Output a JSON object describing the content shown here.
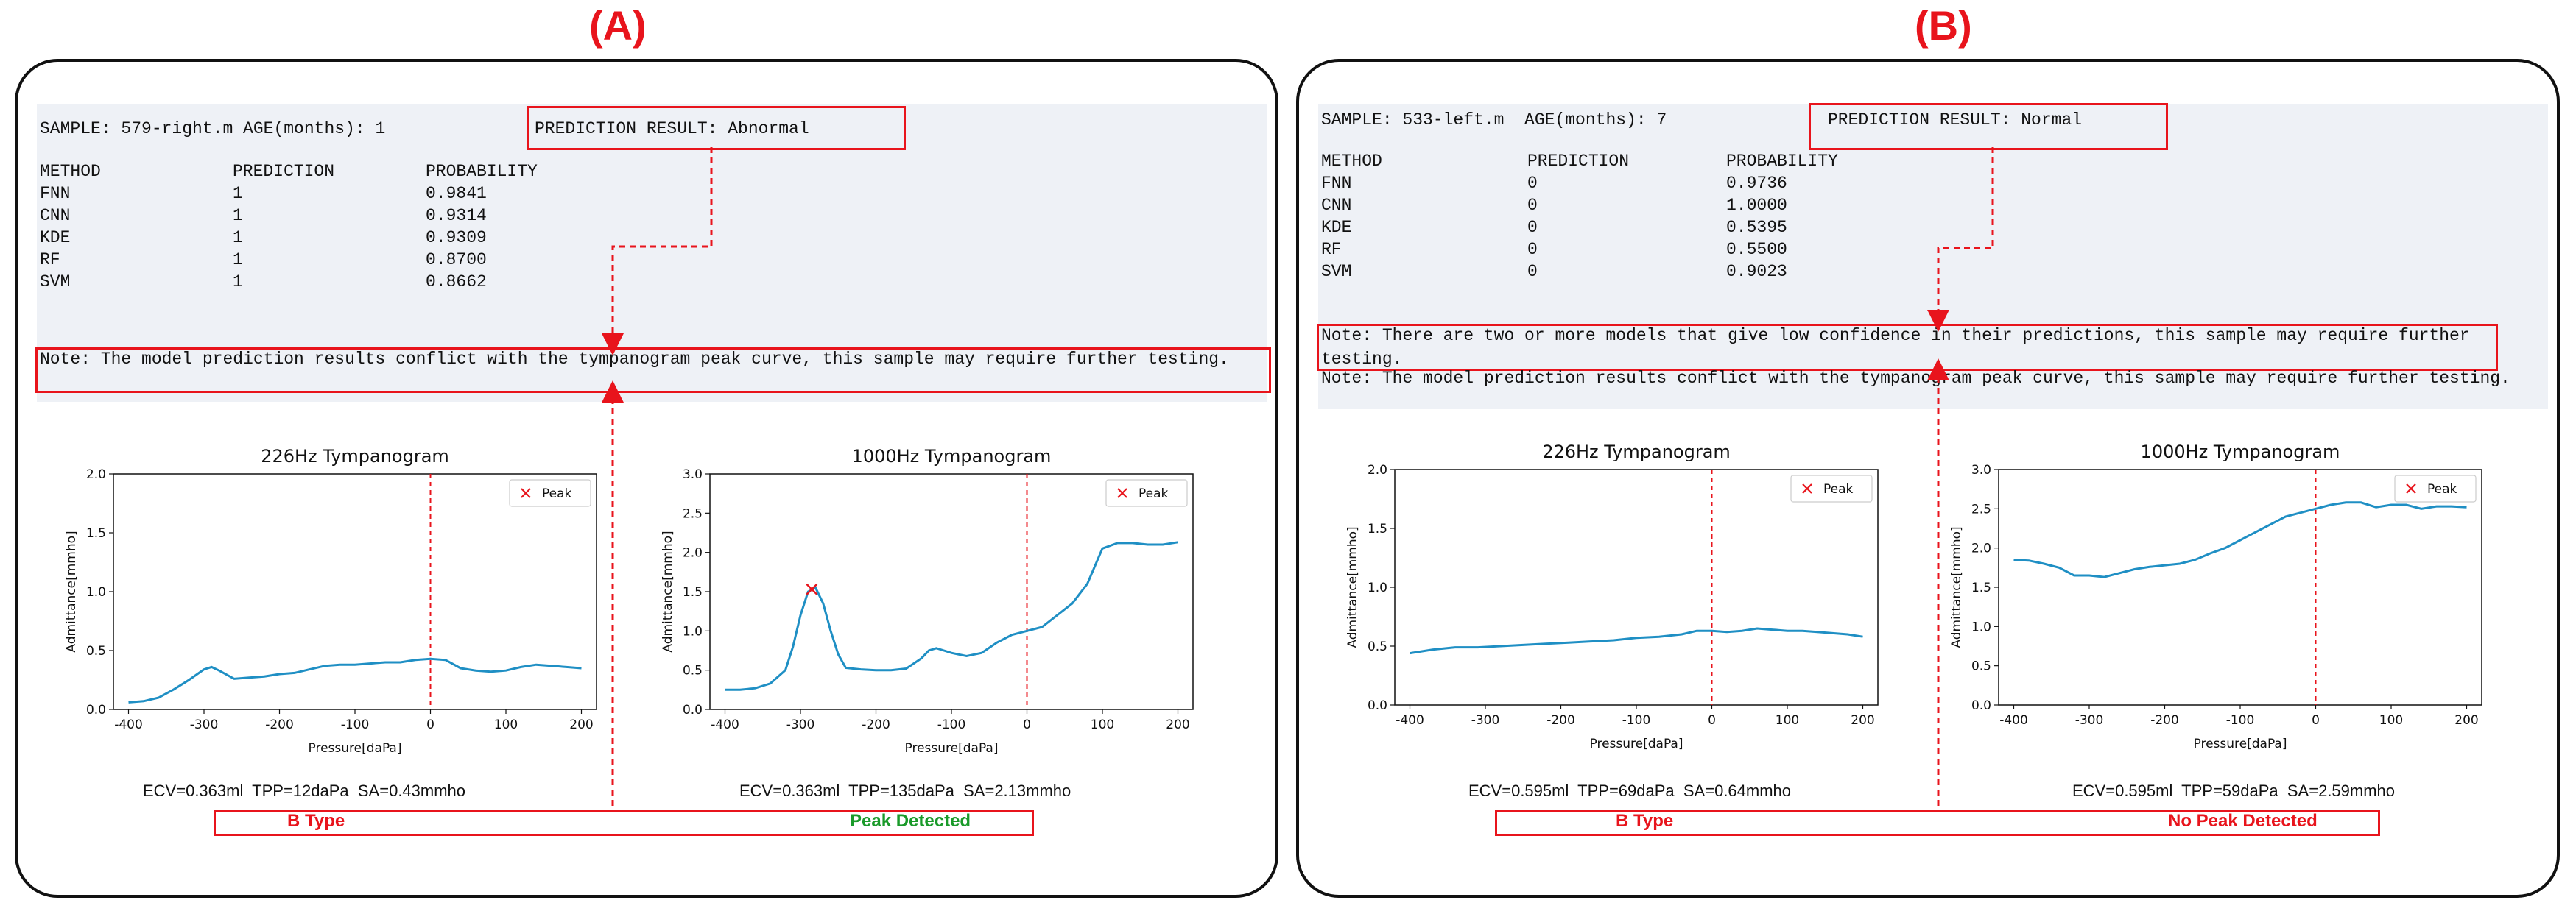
{
  "panels": [
    {
      "label": "(A)",
      "sample_line": "SAMPLE: 579-right.m AGE(months): 1",
      "prediction_result": "PREDICTION RESULT: Abnormal",
      "table_header": {
        "method": "METHOD",
        "prediction": "PREDICTION",
        "probability": "PROBABILITY"
      },
      "rows": [
        {
          "method": "FNN",
          "prediction": "1",
          "probability": "0.9841"
        },
        {
          "method": "CNN",
          "prediction": "1",
          "probability": "0.9314"
        },
        {
          "method": "KDE",
          "prediction": "1",
          "probability": "0.9309"
        },
        {
          "method": "RF",
          "prediction": "1",
          "probability": "0.8700"
        },
        {
          "method": "SVM",
          "prediction": "1",
          "probability": "0.8662"
        }
      ],
      "notes": [
        "Note: The model prediction results conflict with the tympanogram peak curve, this sample may require further testing."
      ],
      "stats_226": "ECV=0.363ml  TPP=12daPa  SA=0.43mmho",
      "stats_1000": "ECV=0.363ml  TPP=135daPa  SA=2.13mmho",
      "footer_left": "B Type",
      "footer_right": "Peak Detected",
      "footer_right_color": "#1a9a2a"
    },
    {
      "label": "(B)",
      "sample_line": "SAMPLE: 533-left.m  AGE(months): 7",
      "prediction_result": "PREDICTION RESULT: Normal",
      "table_header": {
        "method": "METHOD",
        "prediction": "PREDICTION",
        "probability": "PROBABILITY"
      },
      "rows": [
        {
          "method": "FNN",
          "prediction": "0",
          "probability": "0.9736"
        },
        {
          "method": "CNN",
          "prediction": "0",
          "probability": "1.0000"
        },
        {
          "method": "KDE",
          "prediction": "0",
          "probability": "0.5395"
        },
        {
          "method": "RF",
          "prediction": "0",
          "probability": "0.5500"
        },
        {
          "method": "SVM",
          "prediction": "0",
          "probability": "0.9023"
        }
      ],
      "notes": [
        "Note: There are two or more models that give low confidence in their predictions, this sample may require further testing.",
        "Note: The model prediction results conflict with the tympanogram peak curve, this sample may require further testing."
      ],
      "stats_226": "ECV=0.595ml  TPP=69daPa  SA=0.64mmho",
      "stats_1000": "ECV=0.595ml  TPP=59daPa  SA=2.59mmho",
      "footer_left": "B Type",
      "footer_right": "No Peak Detected",
      "footer_right_color": "#e8141c"
    }
  ],
  "chart_data": [
    {
      "panel": "A",
      "type": "line",
      "title": "226Hz Tympanogram",
      "xlabel": "Pressure[daPa]",
      "ylabel": "Admittance[mmho]",
      "xlim": [
        -420,
        220
      ],
      "ylim": [
        0,
        2.0
      ],
      "xticks": [
        -400,
        -300,
        -200,
        -100,
        0,
        100,
        200
      ],
      "yticks": [
        0.0,
        0.5,
        1.0,
        1.5,
        2.0
      ],
      "legend": "Peak",
      "legend_position": "top-right",
      "vline_x": 0,
      "line_color": "#1f8fc4",
      "x": [
        -400,
        -380,
        -360,
        -340,
        -320,
        -300,
        -290,
        -280,
        -260,
        -240,
        -220,
        -200,
        -180,
        -160,
        -140,
        -120,
        -100,
        -80,
        -60,
        -40,
        -20,
        0,
        20,
        40,
        60,
        80,
        100,
        120,
        140,
        160,
        180,
        200
      ],
      "y": [
        0.06,
        0.07,
        0.1,
        0.17,
        0.25,
        0.34,
        0.36,
        0.33,
        0.26,
        0.27,
        0.28,
        0.3,
        0.31,
        0.34,
        0.37,
        0.38,
        0.38,
        0.39,
        0.4,
        0.4,
        0.42,
        0.43,
        0.42,
        0.35,
        0.33,
        0.32,
        0.33,
        0.36,
        0.38,
        0.37,
        0.36,
        0.35
      ],
      "peak": null
    },
    {
      "panel": "A",
      "type": "line",
      "title": "1000Hz Tympanogram",
      "xlabel": "Pressure[daPa]",
      "ylabel": "Admittance[mmho]",
      "xlim": [
        -420,
        220
      ],
      "ylim": [
        0,
        3.0
      ],
      "xticks": [
        -400,
        -300,
        -200,
        -100,
        0,
        100,
        200
      ],
      "yticks": [
        0.0,
        0.5,
        1.0,
        1.5,
        2.0,
        2.5,
        3.0
      ],
      "legend": "Peak",
      "legend_position": "top-right",
      "vline_x": 0,
      "line_color": "#1f8fc4",
      "x": [
        -400,
        -380,
        -360,
        -340,
        -320,
        -310,
        -300,
        -290,
        -280,
        -270,
        -260,
        -250,
        -240,
        -220,
        -200,
        -180,
        -160,
        -140,
        -130,
        -120,
        -110,
        -100,
        -80,
        -60,
        -40,
        -20,
        0,
        20,
        40,
        60,
        80,
        100,
        120,
        140,
        160,
        180,
        200
      ],
      "y": [
        0.25,
        0.25,
        0.27,
        0.33,
        0.5,
        0.8,
        1.2,
        1.5,
        1.55,
        1.35,
        1.0,
        0.7,
        0.53,
        0.51,
        0.5,
        0.5,
        0.52,
        0.65,
        0.75,
        0.78,
        0.75,
        0.72,
        0.68,
        0.72,
        0.85,
        0.95,
        1.0,
        1.05,
        1.2,
        1.35,
        1.6,
        2.05,
        2.12,
        2.12,
        2.1,
        2.1,
        2.13
      ],
      "peak": {
        "x": -285,
        "y": 1.53
      }
    },
    {
      "panel": "B",
      "type": "line",
      "title": "226Hz Tympanogram",
      "xlabel": "Pressure[daPa]",
      "ylabel": "Admittance[mmho]",
      "xlim": [
        -420,
        220
      ],
      "ylim": [
        0,
        2.0
      ],
      "xticks": [
        -400,
        -300,
        -200,
        -100,
        0,
        100,
        200
      ],
      "yticks": [
        0.0,
        0.5,
        1.0,
        1.5,
        2.0
      ],
      "legend": "Peak",
      "legend_position": "top-right",
      "vline_x": 0,
      "line_color": "#1f8fc4",
      "x": [
        -400,
        -370,
        -340,
        -310,
        -280,
        -250,
        -220,
        -190,
        -160,
        -130,
        -100,
        -70,
        -40,
        -20,
        0,
        20,
        40,
        60,
        80,
        100,
        120,
        140,
        160,
        180,
        200
      ],
      "y": [
        0.44,
        0.47,
        0.49,
        0.49,
        0.5,
        0.51,
        0.52,
        0.53,
        0.54,
        0.55,
        0.57,
        0.58,
        0.6,
        0.63,
        0.63,
        0.62,
        0.63,
        0.65,
        0.64,
        0.63,
        0.63,
        0.62,
        0.61,
        0.6,
        0.58
      ],
      "peak": null
    },
    {
      "panel": "B",
      "type": "line",
      "title": "1000Hz Tympanogram",
      "xlabel": "Pressure[daPa]",
      "ylabel": "Admittance[mmho]",
      "xlim": [
        -420,
        220
      ],
      "ylim": [
        0,
        3.0
      ],
      "xticks": [
        -400,
        -300,
        -200,
        -100,
        0,
        100,
        200
      ],
      "yticks": [
        0.0,
        0.5,
        1.0,
        1.5,
        2.0,
        2.5,
        3.0
      ],
      "legend": "Peak",
      "legend_position": "top-right",
      "vline_x": 0,
      "line_color": "#1f8fc4",
      "x": [
        -400,
        -380,
        -360,
        -340,
        -320,
        -300,
        -280,
        -260,
        -240,
        -220,
        -200,
        -180,
        -160,
        -140,
        -120,
        -100,
        -80,
        -60,
        -40,
        -20,
        0,
        20,
        40,
        60,
        80,
        100,
        120,
        140,
        160,
        180,
        200
      ],
      "y": [
        1.85,
        1.84,
        1.8,
        1.75,
        1.65,
        1.65,
        1.63,
        1.68,
        1.73,
        1.76,
        1.78,
        1.8,
        1.85,
        1.93,
        2.0,
        2.1,
        2.2,
        2.3,
        2.4,
        2.45,
        2.5,
        2.55,
        2.58,
        2.58,
        2.52,
        2.55,
        2.55,
        2.5,
        2.53,
        2.53,
        2.52
      ],
      "peak": null
    }
  ]
}
